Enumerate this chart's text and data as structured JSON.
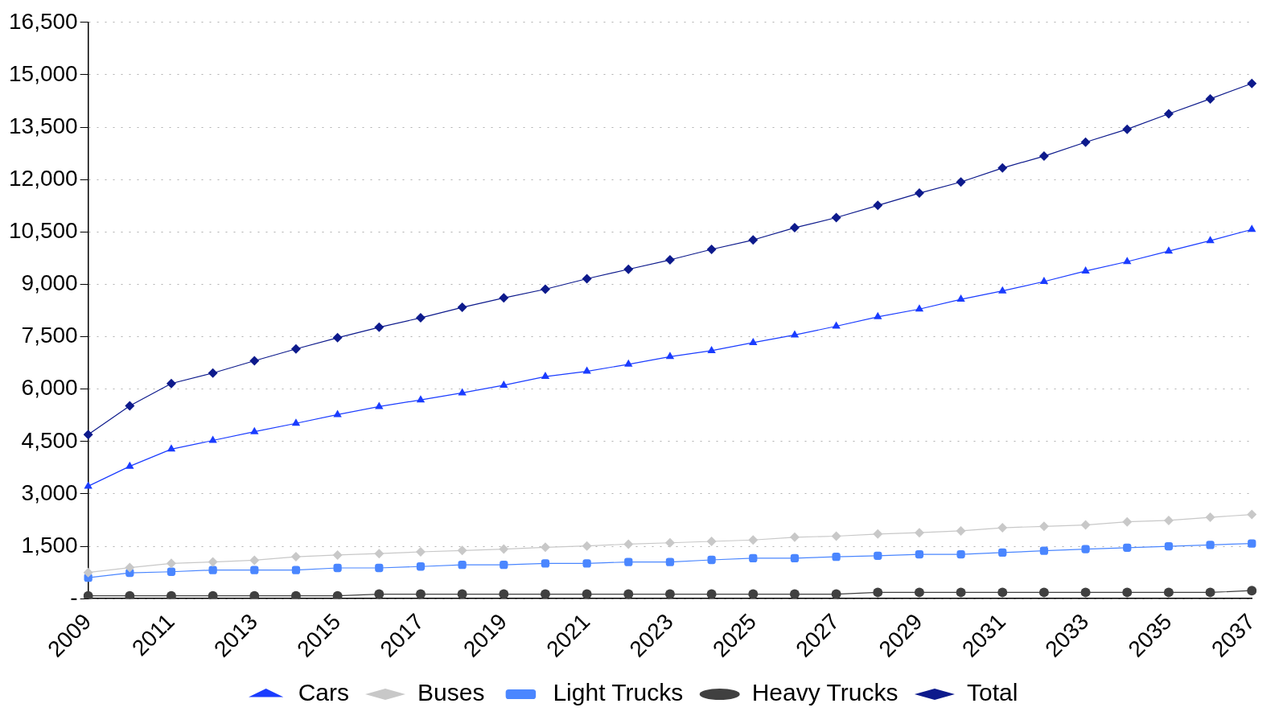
{
  "chart_data": {
    "type": "line",
    "categories": [
      "2009",
      null,
      "2011",
      null,
      "2013",
      null,
      "2015",
      null,
      "2017",
      null,
      "2019",
      null,
      "2021",
      null,
      "2023",
      null,
      "2025",
      null,
      "2027",
      null,
      "2029",
      null,
      "2031",
      null,
      "2033",
      null,
      "2035",
      null,
      "2037"
    ],
    "series": [
      {
        "name": "Cars",
        "color": "#1a3cff",
        "marker": "triangle",
        "values": [
          3220,
          3790,
          4280,
          4530,
          4780,
          5020,
          5270,
          5500,
          5690,
          5890,
          6110,
          6360,
          6510,
          6710,
          6930,
          7100,
          7330,
          7550,
          7800,
          8070,
          8290,
          8570,
          8810,
          9080,
          9380,
          9650,
          9950,
          10250,
          10570
        ]
      },
      {
        "name": "Buses",
        "color": "#c8c8c8",
        "marker": "diamond",
        "values": [
          750,
          890,
          1010,
          1050,
          1100,
          1200,
          1250,
          1290,
          1340,
          1380,
          1420,
          1470,
          1510,
          1560,
          1600,
          1640,
          1680,
          1760,
          1790,
          1850,
          1890,
          1940,
          2030,
          2070,
          2110,
          2200,
          2240,
          2330,
          2410
        ]
      },
      {
        "name": "Light Trucks",
        "color": "#4a86ff",
        "marker": "square",
        "values": [
          600,
          740,
          770,
          820,
          820,
          820,
          880,
          880,
          920,
          970,
          970,
          1010,
          1010,
          1050,
          1050,
          1110,
          1160,
          1160,
          1200,
          1230,
          1270,
          1270,
          1320,
          1370,
          1420,
          1460,
          1500,
          1540,
          1580
        ]
      },
      {
        "name": "Heavy Trucks",
        "color": "#404040",
        "marker": "circle",
        "values": [
          80,
          80,
          80,
          80,
          80,
          80,
          80,
          130,
          130,
          130,
          130,
          130,
          130,
          130,
          130,
          130,
          130,
          130,
          130,
          180,
          180,
          180,
          180,
          180,
          180,
          180,
          180,
          180,
          230
        ]
      },
      {
        "name": "Total",
        "color": "#0d1a8c",
        "marker": "diamond",
        "values": [
          4700,
          5520,
          6160,
          6460,
          6810,
          7150,
          7470,
          7770,
          8040,
          8340,
          8610,
          8860,
          9160,
          9430,
          9700,
          10000,
          10270,
          10620,
          10910,
          11260,
          11610,
          11930,
          12330,
          12670,
          13070,
          13440,
          13880,
          14310,
          14750
        ]
      }
    ],
    "ylim": [
      0,
      16500
    ],
    "yticks": [
      {
        "value": 0,
        "label": "-"
      },
      {
        "value": 1500,
        "label": "1,500"
      },
      {
        "value": 3000,
        "label": "3,000"
      },
      {
        "value": 4500,
        "label": "4,500"
      },
      {
        "value": 6000,
        "label": "6,000"
      },
      {
        "value": 7500,
        "label": "7,500"
      },
      {
        "value": 9000,
        "label": "9,000"
      },
      {
        "value": 10500,
        "label": "10,500"
      },
      {
        "value": 12000,
        "label": "12,000"
      },
      {
        "value": 13500,
        "label": "13,500"
      },
      {
        "value": 15000,
        "label": "15,000"
      },
      {
        "value": 16500,
        "label": "16,500"
      }
    ],
    "grid": "y",
    "legend": "bottom",
    "line_style": "solid"
  }
}
